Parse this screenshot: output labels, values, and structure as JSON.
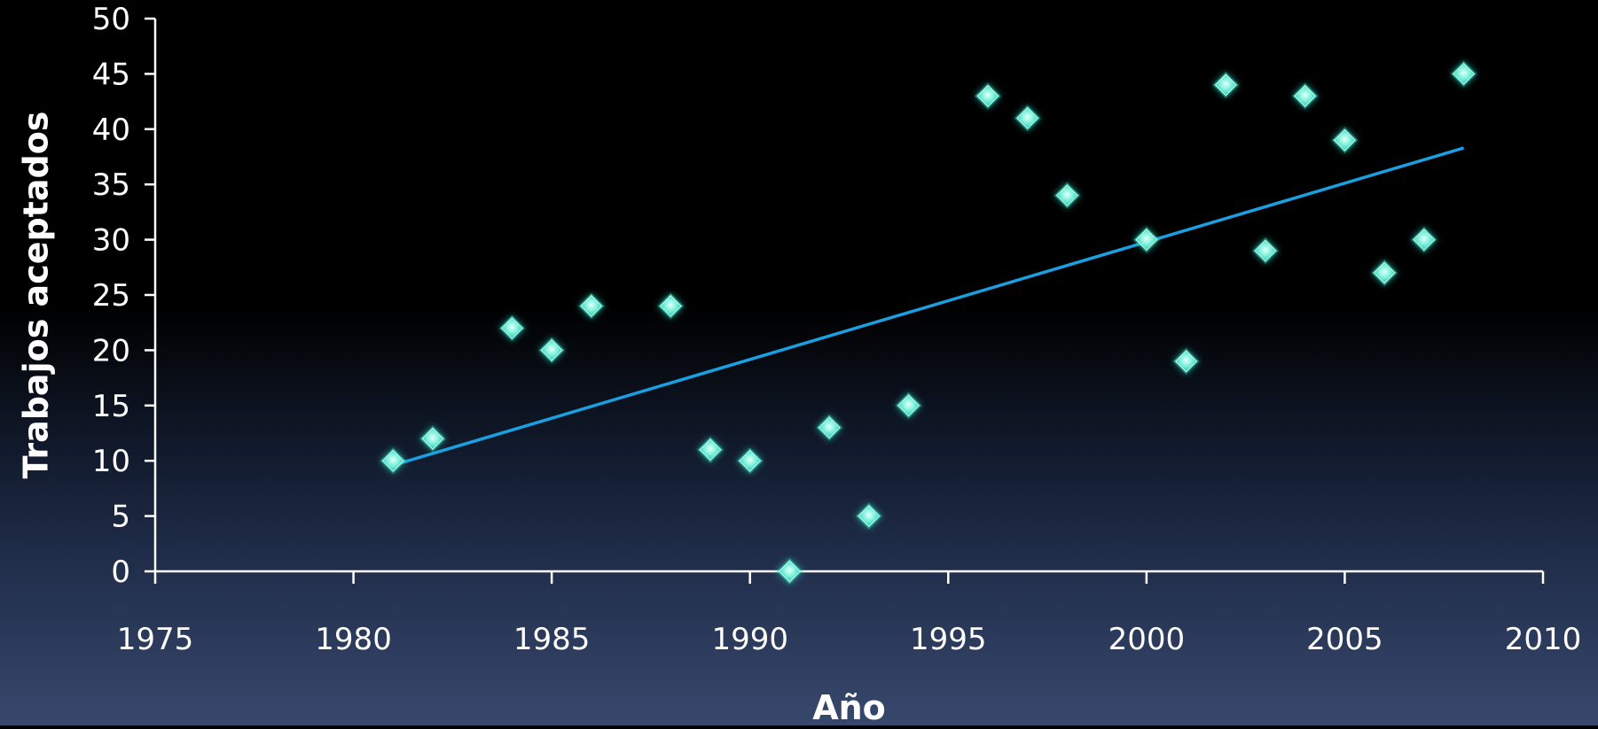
{
  "chart_data": {
    "type": "scatter",
    "title": "",
    "xlabel": "Año",
    "ylabel": "Trabajos aceptados",
    "xlim": [
      1975,
      2010
    ],
    "ylim": [
      0,
      50
    ],
    "x_ticks": [
      1975,
      1980,
      1985,
      1990,
      1995,
      2000,
      2005,
      2010
    ],
    "y_ticks": [
      0,
      5,
      10,
      15,
      20,
      25,
      30,
      35,
      40,
      45,
      50
    ],
    "grid": false,
    "legend": "none",
    "series": [
      {
        "points": [
          {
            "x": 1981,
            "y": 10
          },
          {
            "x": 1982,
            "y": 12
          },
          {
            "x": 1984,
            "y": 22
          },
          {
            "x": 1985,
            "y": 20
          },
          {
            "x": 1986,
            "y": 24
          },
          {
            "x": 1988,
            "y": 24
          },
          {
            "x": 1989,
            "y": 11
          },
          {
            "x": 1990,
            "y": 10
          },
          {
            "x": 1991,
            "y": 0
          },
          {
            "x": 1992,
            "y": 13
          },
          {
            "x": 1993,
            "y": 5
          },
          {
            "x": 1994,
            "y": 15
          },
          {
            "x": 1996,
            "y": 43
          },
          {
            "x": 1997,
            "y": 41
          },
          {
            "x": 1998,
            "y": 34
          },
          {
            "x": 2000,
            "y": 30
          },
          {
            "x": 2001,
            "y": 19
          },
          {
            "x": 2002,
            "y": 44
          },
          {
            "x": 2003,
            "y": 29
          },
          {
            "x": 2004,
            "y": 43
          },
          {
            "x": 2005,
            "y": 39
          },
          {
            "x": 2006,
            "y": 27
          },
          {
            "x": 2007,
            "y": 30
          },
          {
            "x": 2008,
            "y": 45
          }
        ]
      }
    ],
    "trendline": {
      "type": "linear",
      "start": {
        "x": 1981,
        "y": 9.6
      },
      "end": {
        "x": 2008,
        "y": 38.3
      }
    },
    "colors": {
      "marker": "#3ee6c8",
      "marker_glow": "#2fd8c0",
      "trendline": "#1a9fe0",
      "axis": "#ffffff",
      "text": "#ffffff"
    }
  }
}
